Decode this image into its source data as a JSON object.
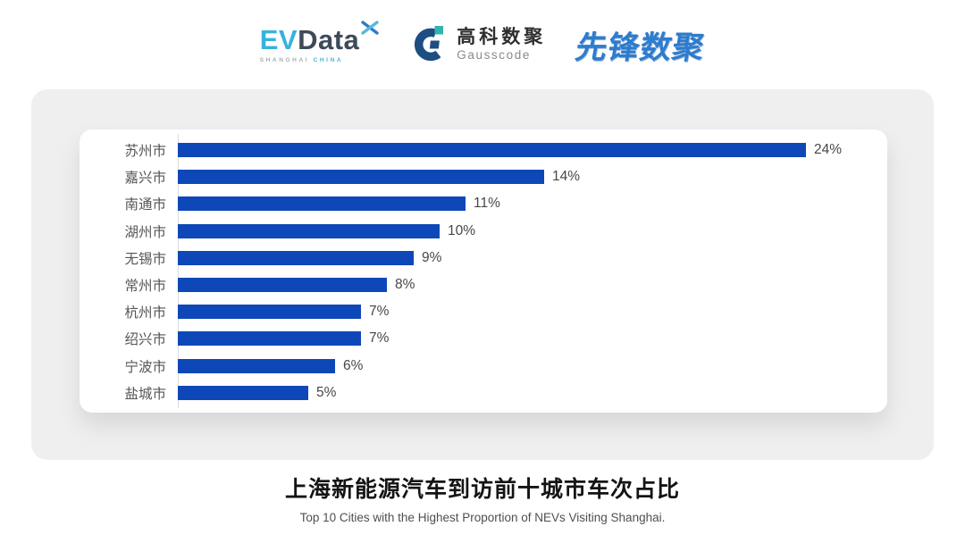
{
  "header": {
    "evdata": {
      "ev": "EV",
      "data": "Data",
      "sub_left": "SHANGHAI",
      "sub_right": "CHINA",
      "ev_color": "#38b2dd",
      "data_color": "#3d4a58",
      "sub_left_color": "#a8adb2",
      "sub_right_color": "#44b5dc"
    },
    "gausscode": {
      "cn": "高科数聚",
      "en": "Gausscode",
      "icon": "gausscode-g-icon",
      "navy": "#1d4e82",
      "teal": "#33b3ae"
    },
    "xianfeng": {
      "text": "先锋数聚",
      "color": "#2d7ccd"
    }
  },
  "chart_data": {
    "type": "bar",
    "orientation": "horizontal",
    "categories": [
      "苏州市",
      "嘉兴市",
      "南通市",
      "湖州市",
      "无锡市",
      "常州市",
      "杭州市",
      "绍兴市",
      "宁波市",
      "盐城市"
    ],
    "values": [
      24,
      14,
      11,
      10,
      9,
      8,
      7,
      7,
      6,
      5
    ],
    "value_labels": [
      "24%",
      "14%",
      "11%",
      "10%",
      "9%",
      "8%",
      "7%",
      "7%",
      "6%",
      "5%"
    ],
    "unit": "%",
    "title": "上海新能源汽车到访前十城市车次占比",
    "subtitle": "Top 10 Cities with the Highest Proportion of  NEVs Visiting Shanghai.",
    "xlabel": "",
    "ylabel": "",
    "xlim": [
      0,
      24
    ],
    "grid": "off",
    "legend": "none",
    "bar_color": "#0e48b8",
    "axis_line_color": "#dcdcdc",
    "value_label_position": "end-of-bar"
  },
  "footer": {
    "title": "上海新能源汽车到访前十城市车次占比",
    "subtitle": "Top 10 Cities with the Highest Proportion of  NEVs Visiting Shanghai."
  },
  "colors": {
    "page_bg": "#ffffff",
    "panel_bg": "#efefef",
    "card_bg": "#ffffff"
  }
}
